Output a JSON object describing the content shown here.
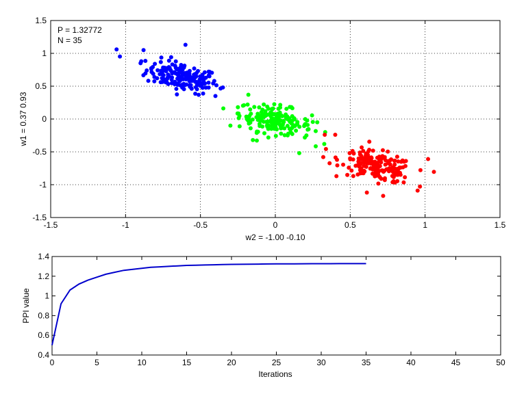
{
  "chart_data": [
    {
      "type": "scatter",
      "annotation_lines": [
        "P = 1.32772",
        "N = 35"
      ],
      "xlabel": "w2 = -1.00  -0.10",
      "ylabel": "w1 = 0.37  0.93",
      "xlim": [
        -1.5,
        1.5
      ],
      "ylim": [
        -1.5,
        1.5
      ],
      "xticks": [
        -1.5,
        -1,
        -0.5,
        0,
        0.5,
        1,
        1.5
      ],
      "yticks": [
        -1.5,
        -1,
        -0.5,
        0,
        0.5,
        1,
        1.5
      ],
      "grid": true,
      "series": [
        {
          "color": "#0000ff",
          "center": [
            -0.62,
            0.64
          ],
          "spread": [
            0.12,
            0.12
          ],
          "correlation": -0.45,
          "count": 180,
          "extremes": [
            [
              -1.06,
              1.06
            ],
            [
              -0.88,
              1.05
            ],
            [
              -0.6,
              1.13
            ],
            [
              -0.4,
              0.35
            ],
            [
              -0.35,
              0.48
            ],
            [
              -0.9,
              0.85
            ]
          ]
        },
        {
          "color": "#00ff00",
          "center": [
            0.0,
            -0.02
          ],
          "spread": [
            0.12,
            0.12
          ],
          "correlation": -0.45,
          "count": 180,
          "extremes": [
            [
              -0.3,
              -0.1
            ],
            [
              -0.25,
              0.18
            ],
            [
              -0.18,
              0.37
            ],
            [
              0.28,
              -0.05
            ],
            [
              0.16,
              -0.52
            ],
            [
              -0.15,
              -0.32
            ]
          ]
        },
        {
          "color": "#ff0000",
          "center": [
            0.68,
            -0.72
          ],
          "spread": [
            0.12,
            0.12
          ],
          "correlation": -0.45,
          "count": 180,
          "extremes": [
            [
              0.33,
              -0.24
            ],
            [
              0.4,
              -0.24
            ],
            [
              0.32,
              -0.58
            ],
            [
              1.02,
              -0.61
            ],
            [
              0.72,
              -1.17
            ],
            [
              0.95,
              -1.09
            ]
          ]
        }
      ]
    },
    {
      "type": "line",
      "xlabel": "Iterations",
      "ylabel": "PPI value",
      "xlim": [
        0,
        50
      ],
      "ylim": [
        0.4,
        1.4
      ],
      "xticks": [
        0,
        5,
        10,
        15,
        20,
        25,
        30,
        35,
        40,
        45,
        50
      ],
      "yticks": [
        0.4,
        0.6,
        0.8,
        1,
        1.2,
        1.4
      ],
      "grid": false,
      "series": [
        {
          "color": "#0000cc",
          "x": [
            0,
            1,
            2,
            3,
            4,
            5,
            6,
            7,
            8,
            9,
            10,
            11,
            12,
            13,
            14,
            15,
            16,
            17,
            18,
            19,
            20,
            21,
            22,
            23,
            24,
            25,
            26,
            27,
            28,
            29,
            30,
            31,
            32,
            33,
            34,
            35
          ],
          "values": [
            0.5,
            0.92,
            1.06,
            1.12,
            1.16,
            1.19,
            1.22,
            1.24,
            1.26,
            1.27,
            1.28,
            1.29,
            1.295,
            1.3,
            1.305,
            1.31,
            1.312,
            1.314,
            1.316,
            1.318,
            1.32,
            1.321,
            1.322,
            1.323,
            1.324,
            1.325,
            1.3255,
            1.326,
            1.3265,
            1.327,
            1.3272,
            1.3274,
            1.3275,
            1.3276,
            1.3277,
            1.32772
          ]
        }
      ]
    }
  ]
}
